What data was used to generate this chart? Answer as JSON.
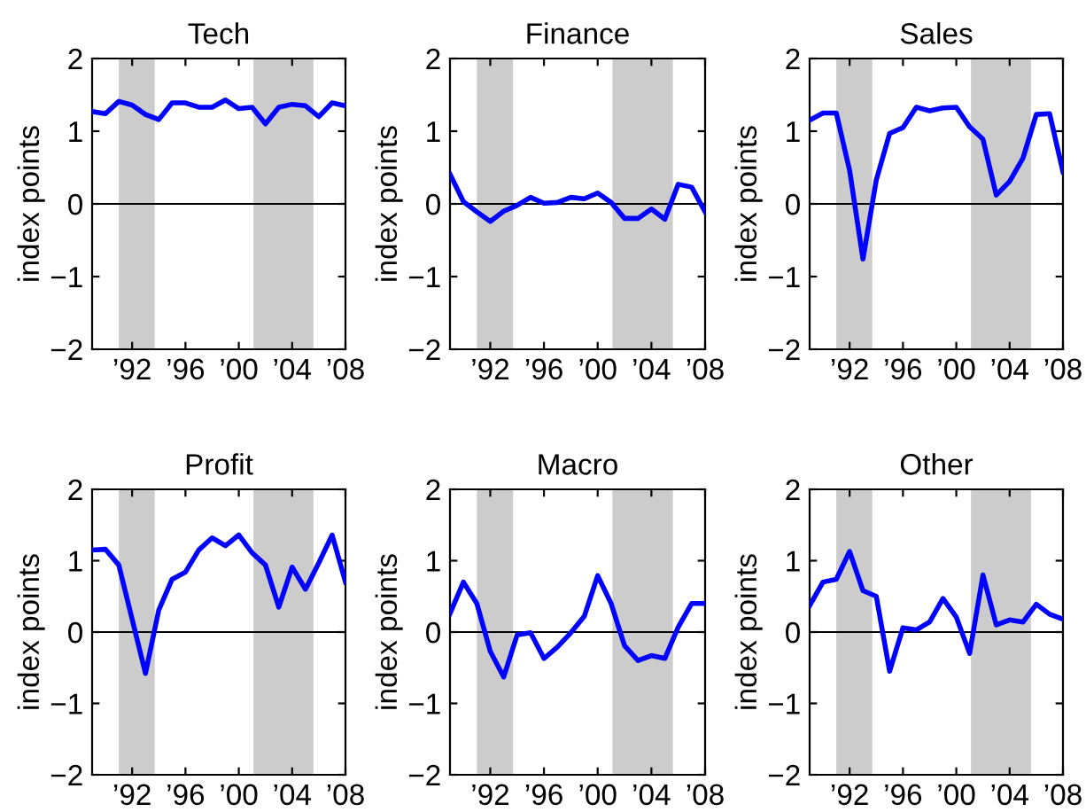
{
  "chart_data": [
    {
      "type": "line",
      "title": "Tech",
      "ylabel": "index points",
      "x": [
        1989,
        1990,
        1991,
        1992,
        1993,
        1994,
        1995,
        1996,
        1997,
        1998,
        1999,
        2000,
        2001,
        2002,
        2003,
        2004,
        2005,
        2006,
        2007,
        2008
      ],
      "series": [
        {
          "color": "#0000ff",
          "values": [
            1.27,
            1.24,
            1.41,
            1.36,
            1.23,
            1.16,
            1.39,
            1.39,
            1.33,
            1.33,
            1.43,
            1.31,
            1.33,
            1.1,
            1.33,
            1.37,
            1.35,
            1.2,
            1.39,
            1.35
          ]
        }
      ],
      "xlim": [
        1989,
        2008
      ],
      "xticks": [
        {
          "value": 1992,
          "label": "’92"
        },
        {
          "value": 1996,
          "label": "’96"
        },
        {
          "value": 2000,
          "label": "’00"
        },
        {
          "value": 2004,
          "label": "’04"
        },
        {
          "value": 2008,
          "label": "’08"
        }
      ],
      "ylim": [
        -2,
        2
      ],
      "yticks": [
        -2,
        -1,
        0,
        1,
        2
      ],
      "grid": false,
      "legend": false,
      "ref_lines": [
        {
          "axis": "y",
          "value": 0,
          "color": "#000000"
        }
      ],
      "bands": [
        {
          "axis": "x",
          "from": 1991,
          "to": 1993.7,
          "color": "#cccccc"
        },
        {
          "axis": "x",
          "from": 2001.1,
          "to": 2005.6,
          "color": "#cccccc"
        }
      ]
    },
    {
      "type": "line",
      "title": "Finance",
      "ylabel": "index points",
      "x": [
        1989,
        1990,
        1991,
        1992,
        1993,
        1994,
        1995,
        1996,
        1997,
        1998,
        1999,
        2000,
        2001,
        2002,
        2003,
        2004,
        2005,
        2006,
        2007,
        2008
      ],
      "series": [
        {
          "color": "#0000ff",
          "values": [
            0.41,
            0.03,
            -0.11,
            -0.24,
            -0.1,
            -0.02,
            0.09,
            0.01,
            0.02,
            0.09,
            0.07,
            0.15,
            0.02,
            -0.2,
            -0.2,
            -0.07,
            -0.21,
            0.27,
            0.23,
            -0.11
          ]
        }
      ],
      "xlim": [
        1989,
        2008
      ],
      "xticks": [
        {
          "value": 1992,
          "label": "’92"
        },
        {
          "value": 1996,
          "label": "’96"
        },
        {
          "value": 2000,
          "label": "’00"
        },
        {
          "value": 2004,
          "label": "’04"
        },
        {
          "value": 2008,
          "label": "’08"
        }
      ],
      "ylim": [
        -2,
        2
      ],
      "yticks": [
        -2,
        -1,
        0,
        1,
        2
      ],
      "grid": false,
      "legend": false,
      "ref_lines": [
        {
          "axis": "y",
          "value": 0,
          "color": "#000000"
        }
      ],
      "bands": [
        {
          "axis": "x",
          "from": 1991,
          "to": 1993.7,
          "color": "#cccccc"
        },
        {
          "axis": "x",
          "from": 2001.1,
          "to": 2005.6,
          "color": "#cccccc"
        }
      ]
    },
    {
      "type": "line",
      "title": "Sales",
      "ylabel": "index points",
      "x": [
        1989,
        1990,
        1991,
        1992,
        1993,
        1994,
        1995,
        1996,
        1997,
        1998,
        1999,
        2000,
        2001,
        2002,
        2003,
        2004,
        2005,
        2006,
        2007,
        2008
      ],
      "series": [
        {
          "color": "#0000ff",
          "values": [
            1.15,
            1.25,
            1.25,
            0.46,
            -0.76,
            0.33,
            0.97,
            1.05,
            1.33,
            1.28,
            1.32,
            1.33,
            1.06,
            0.89,
            0.12,
            0.31,
            0.63,
            1.23,
            1.24,
            0.44
          ]
        }
      ],
      "xlim": [
        1989,
        2008
      ],
      "xticks": [
        {
          "value": 1992,
          "label": "’92"
        },
        {
          "value": 1996,
          "label": "’96"
        },
        {
          "value": 2000,
          "label": "’00"
        },
        {
          "value": 2004,
          "label": "’04"
        },
        {
          "value": 2008,
          "label": "’08"
        }
      ],
      "ylim": [
        -2,
        2
      ],
      "yticks": [
        -2,
        -1,
        0,
        1,
        2
      ],
      "grid": false,
      "legend": false,
      "ref_lines": [
        {
          "axis": "y",
          "value": 0,
          "color": "#000000"
        }
      ],
      "bands": [
        {
          "axis": "x",
          "from": 1991,
          "to": 1993.7,
          "color": "#cccccc"
        },
        {
          "axis": "x",
          "from": 2001.1,
          "to": 2005.6,
          "color": "#cccccc"
        }
      ]
    },
    {
      "type": "line",
      "title": "Profit",
      "ylabel": "index points",
      "x": [
        1989,
        1990,
        1991,
        1992,
        1993,
        1994,
        1995,
        1996,
        1997,
        1998,
        1999,
        2000,
        2001,
        2002,
        2003,
        2004,
        2005,
        2006,
        2007,
        2008
      ],
      "series": [
        {
          "color": "#0000ff",
          "values": [
            1.15,
            1.16,
            0.94,
            0.18,
            -0.58,
            0.31,
            0.74,
            0.84,
            1.15,
            1.32,
            1.21,
            1.36,
            1.11,
            0.94,
            0.35,
            0.91,
            0.6,
            0.97,
            1.36,
            0.7
          ]
        }
      ],
      "xlim": [
        1989,
        2008
      ],
      "xticks": [
        {
          "value": 1992,
          "label": "’92"
        },
        {
          "value": 1996,
          "label": "’96"
        },
        {
          "value": 2000,
          "label": "’00"
        },
        {
          "value": 2004,
          "label": "’04"
        },
        {
          "value": 2008,
          "label": "’08"
        }
      ],
      "ylim": [
        -2,
        2
      ],
      "yticks": [
        -2,
        -1,
        0,
        1,
        2
      ],
      "grid": false,
      "legend": false,
      "ref_lines": [
        {
          "axis": "y",
          "value": 0,
          "color": "#000000"
        }
      ],
      "bands": [
        {
          "axis": "x",
          "from": 1991,
          "to": 1993.7,
          "color": "#cccccc"
        },
        {
          "axis": "x",
          "from": 2001.1,
          "to": 2005.6,
          "color": "#cccccc"
        }
      ]
    },
    {
      "type": "line",
      "title": "Macro",
      "ylabel": "index points",
      "x": [
        1989,
        1990,
        1991,
        1992,
        1993,
        1994,
        1995,
        1996,
        1997,
        1998,
        1999,
        2000,
        2001,
        2002,
        2003,
        2004,
        2005,
        2006,
        2007,
        2008
      ],
      "series": [
        {
          "color": "#0000ff",
          "values": [
            0.26,
            0.7,
            0.4,
            -0.27,
            -0.63,
            -0.04,
            -0.01,
            -0.37,
            -0.21,
            -0.01,
            0.22,
            0.79,
            0.4,
            -0.19,
            -0.4,
            -0.33,
            -0.37,
            0.07,
            0.4,
            0.4
          ]
        }
      ],
      "xlim": [
        1989,
        2008
      ],
      "xticks": [
        {
          "value": 1992,
          "label": "’92"
        },
        {
          "value": 1996,
          "label": "’96"
        },
        {
          "value": 2000,
          "label": "’00"
        },
        {
          "value": 2004,
          "label": "’04"
        },
        {
          "value": 2008,
          "label": "’08"
        }
      ],
      "ylim": [
        -2,
        2
      ],
      "yticks": [
        -2,
        -1,
        0,
        1,
        2
      ],
      "grid": false,
      "legend": false,
      "ref_lines": [
        {
          "axis": "y",
          "value": 0,
          "color": "#000000"
        }
      ],
      "bands": [
        {
          "axis": "x",
          "from": 1991,
          "to": 1993.7,
          "color": "#cccccc"
        },
        {
          "axis": "x",
          "from": 2001.1,
          "to": 2005.6,
          "color": "#cccccc"
        }
      ]
    },
    {
      "type": "line",
      "title": "Other",
      "ylabel": "index points",
      "x": [
        1989,
        1990,
        1991,
        1992,
        1993,
        1994,
        1995,
        1996,
        1997,
        1998,
        1999,
        2000,
        2001,
        2002,
        2003,
        2004,
        2005,
        2006,
        2007,
        2008
      ],
      "series": [
        {
          "color": "#0000ff",
          "values": [
            0.37,
            0.7,
            0.74,
            1.13,
            0.58,
            0.5,
            -0.55,
            0.06,
            0.03,
            0.14,
            0.47,
            0.21,
            -0.3,
            0.8,
            0.1,
            0.17,
            0.14,
            0.39,
            0.25,
            0.18
          ]
        }
      ],
      "xlim": [
        1989,
        2008
      ],
      "xticks": [
        {
          "value": 1992,
          "label": "’92"
        },
        {
          "value": 1996,
          "label": "’96"
        },
        {
          "value": 2000,
          "label": "’00"
        },
        {
          "value": 2004,
          "label": "’04"
        },
        {
          "value": 2008,
          "label": "’08"
        }
      ],
      "ylim": [
        -2,
        2
      ],
      "yticks": [
        -2,
        -1,
        0,
        1,
        2
      ],
      "grid": false,
      "legend": false,
      "ref_lines": [
        {
          "axis": "y",
          "value": 0,
          "color": "#000000"
        }
      ],
      "bands": [
        {
          "axis": "x",
          "from": 1991,
          "to": 1993.7,
          "color": "#cccccc"
        },
        {
          "axis": "x",
          "from": 2001.1,
          "to": 2005.6,
          "color": "#cccccc"
        }
      ]
    }
  ]
}
